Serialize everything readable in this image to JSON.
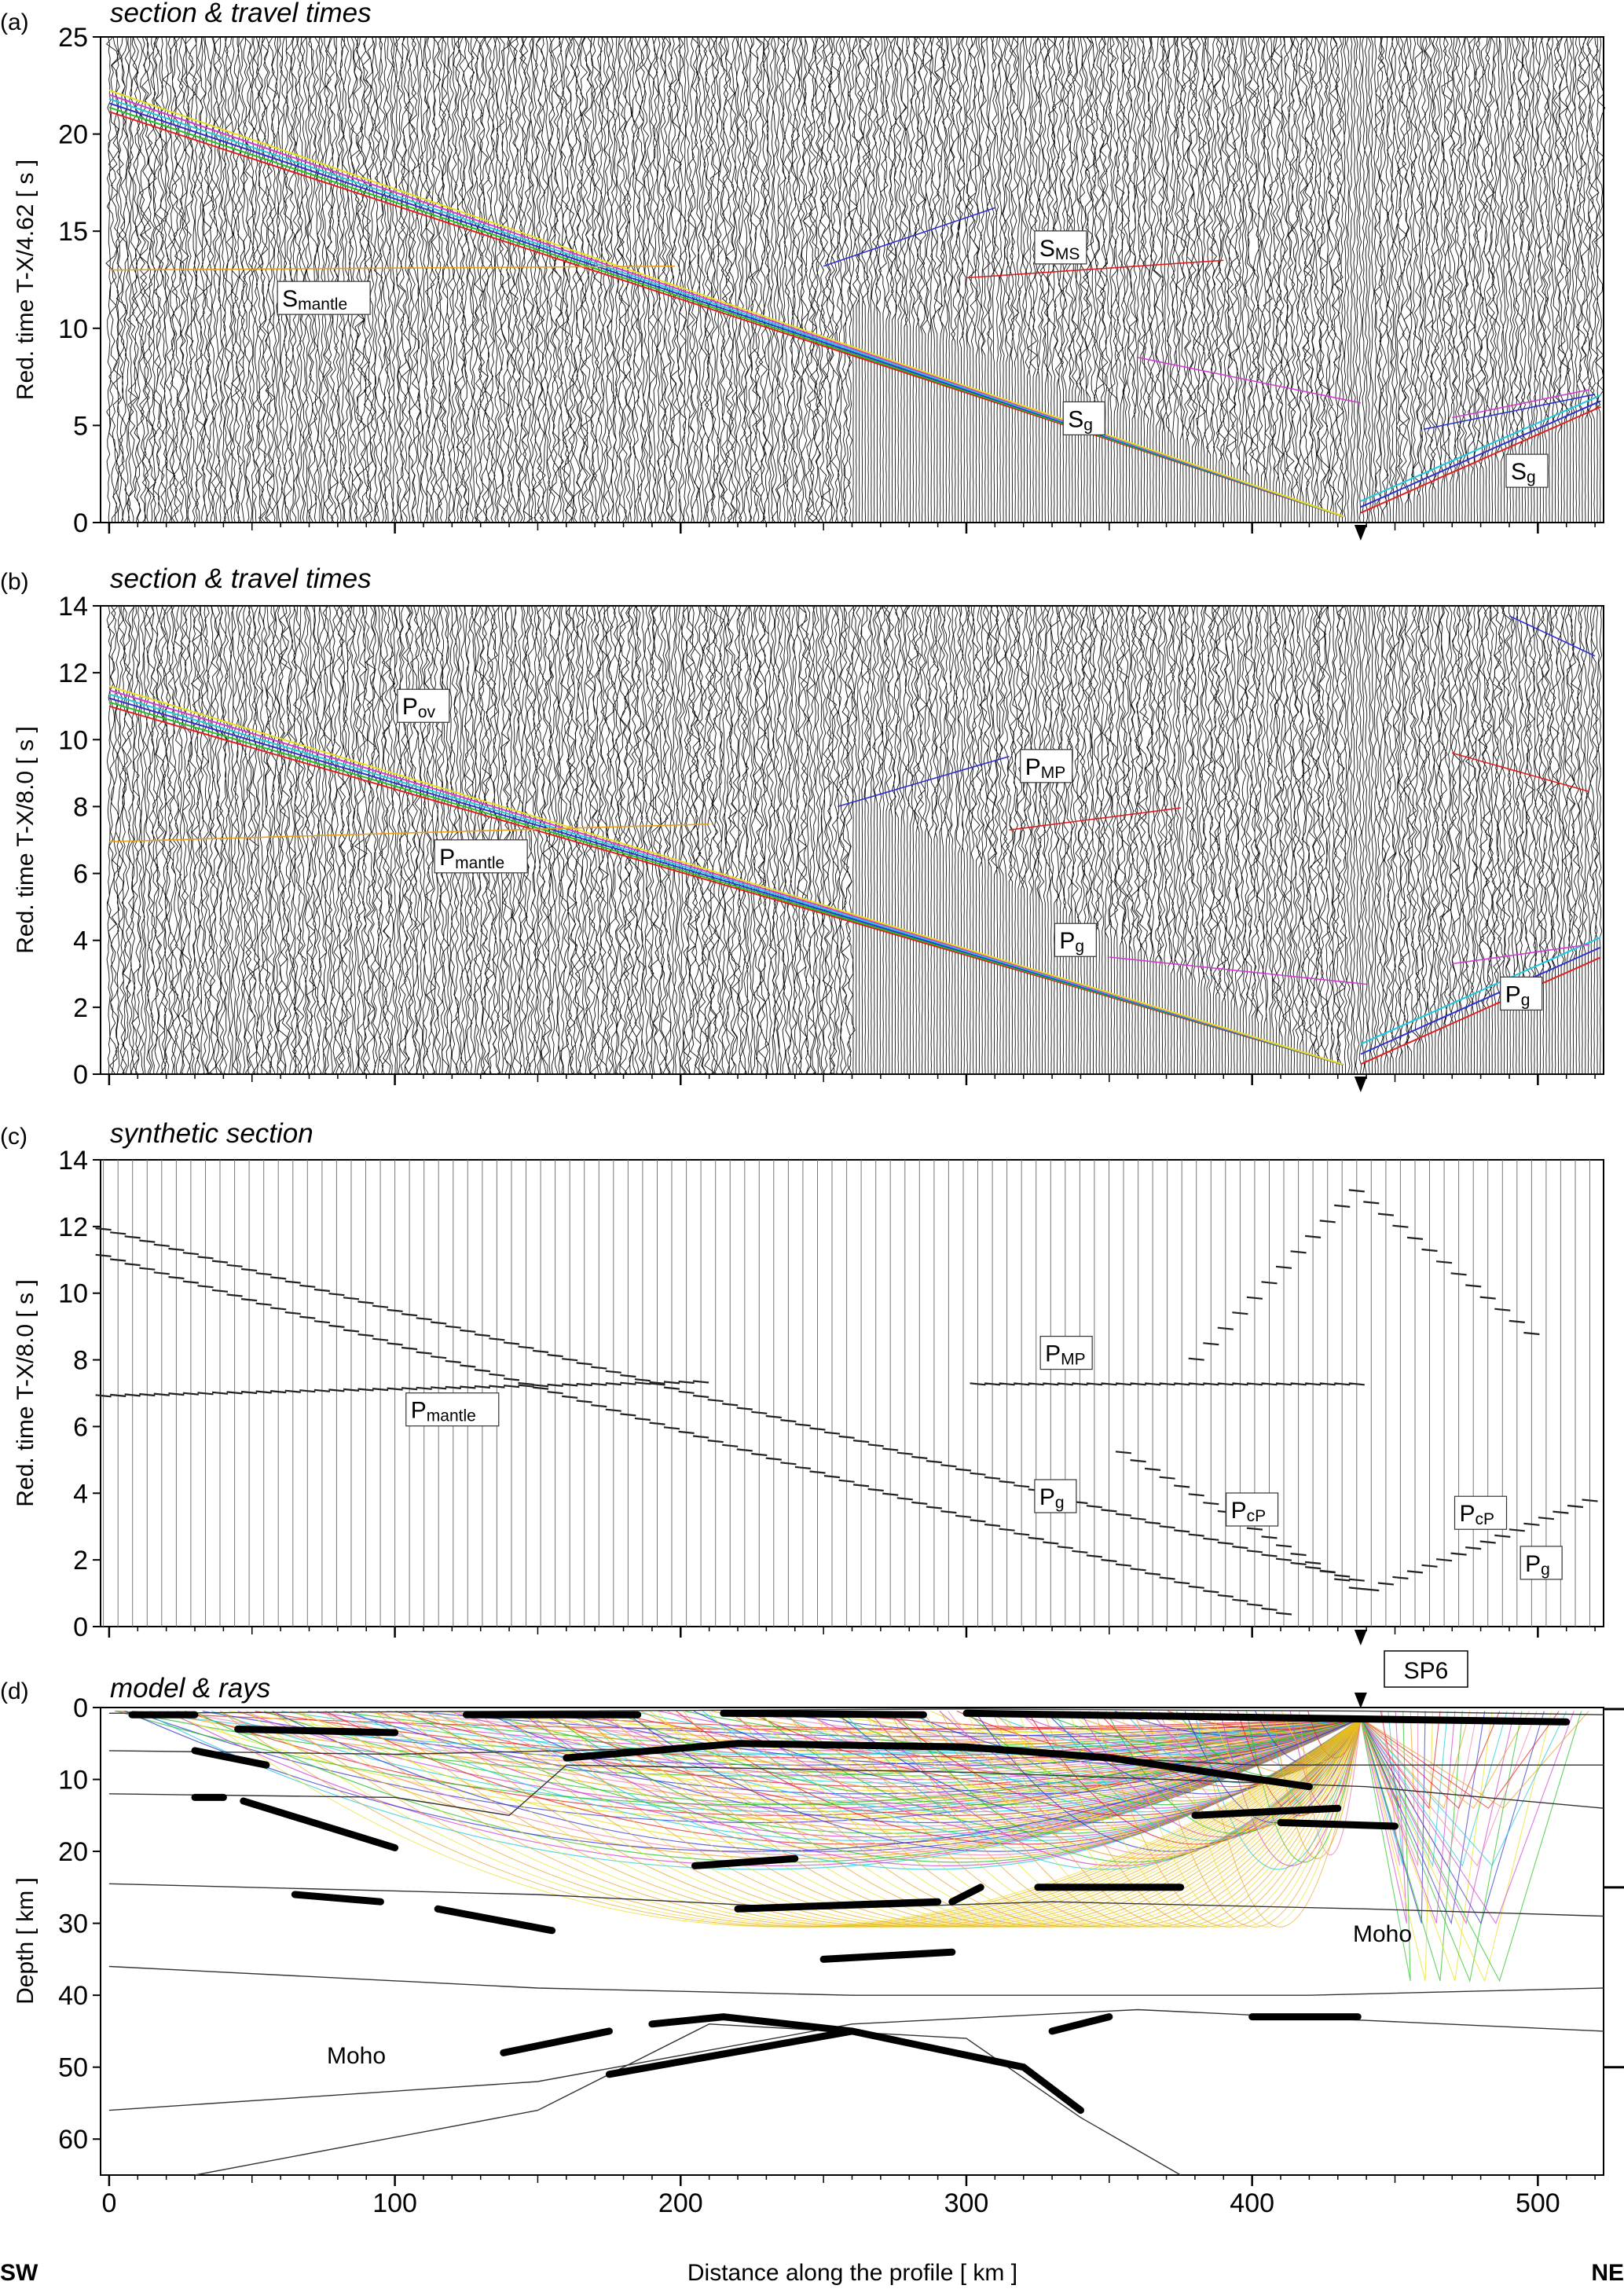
{
  "panels": [
    {
      "id": "a",
      "letter": "(a)",
      "title": "section & travel times",
      "ylabel": "Red. time  T-X/4.62  [ s ]",
      "yticks": [
        "0",
        "5",
        "10",
        "15",
        "20",
        "25"
      ],
      "ymax": 25,
      "phases": [
        {
          "main": "S",
          "sub": "mantle",
          "x": 60,
          "t": 11.2
        },
        {
          "main": "S",
          "sub": "MS",
          "x": 325,
          "t": 13.8
        },
        {
          "main": "S",
          "sub": "g",
          "x": 335,
          "t": 5.0
        },
        {
          "main": "S",
          "sub": "g",
          "x": 490,
          "t": 2.3
        }
      ]
    },
    {
      "id": "b",
      "letter": "(b)",
      "title": "section & travel times",
      "ylabel": "Red. time  T-X/8.0  [ s ]",
      "yticks": [
        "0",
        "2",
        "4",
        "6",
        "8",
        "10",
        "12",
        "14"
      ],
      "ymax": 14,
      "phases": [
        {
          "main": "P",
          "sub": "ov",
          "x": 102,
          "t": 10.8
        },
        {
          "main": "P",
          "sub": "mantle",
          "x": 115,
          "t": 6.3
        },
        {
          "main": "P",
          "sub": "MP",
          "x": 320,
          "t": 9.0
        },
        {
          "main": "P",
          "sub": "g",
          "x": 332,
          "t": 3.8
        },
        {
          "main": "P",
          "sub": "g",
          "x": 488,
          "t": 2.2
        }
      ]
    },
    {
      "id": "c",
      "letter": "(c)",
      "title": "synthetic section",
      "ylabel": "Red. time  T-X/8.0  [ s ]",
      "yticks": [
        "0",
        "2",
        "4",
        "6",
        "8",
        "10",
        "12",
        "14"
      ],
      "ymax": 14,
      "phases": [
        {
          "main": "P",
          "sub": "mantle",
          "x": 105,
          "t": 6.3
        },
        {
          "main": "P",
          "sub": "MP",
          "x": 327,
          "t": 8.0
        },
        {
          "main": "P",
          "sub": "g",
          "x": 325,
          "t": 3.7
        },
        {
          "main": "P",
          "sub": "cP",
          "x": 392,
          "t": 3.3
        },
        {
          "main": "P",
          "sub": "cP",
          "x": 472,
          "t": 3.2
        },
        {
          "main": "P",
          "sub": "g",
          "x": 495,
          "t": 1.7
        }
      ]
    },
    {
      "id": "d",
      "letter": "(d)",
      "title": "model & rays",
      "ylabel": "Depth  [ km ]",
      "yticks": [
        "0",
        "10",
        "20",
        "30",
        "40",
        "50",
        "60"
      ],
      "ymax": 65
    }
  ],
  "shotpoint": {
    "label": "SP6",
    "distance_km": 438
  },
  "xaxis": {
    "label": "Distance along the profile  [ km ]",
    "ticks": [
      "0",
      "100",
      "200",
      "300",
      "400",
      "500"
    ],
    "range": [
      -3,
      523
    ]
  },
  "sw_label": "SW",
  "ne_label": "NE",
  "moho_labels": [
    "Moho",
    "Moho"
  ],
  "colors": {
    "red": "#e02020",
    "green": "#22c022",
    "blue": "#3030d0",
    "cyan": "#20c8e0",
    "orange": "#e8a020",
    "yellow": "#e8e020",
    "magenta": "#d040d0",
    "pink": "#f080b0"
  }
}
